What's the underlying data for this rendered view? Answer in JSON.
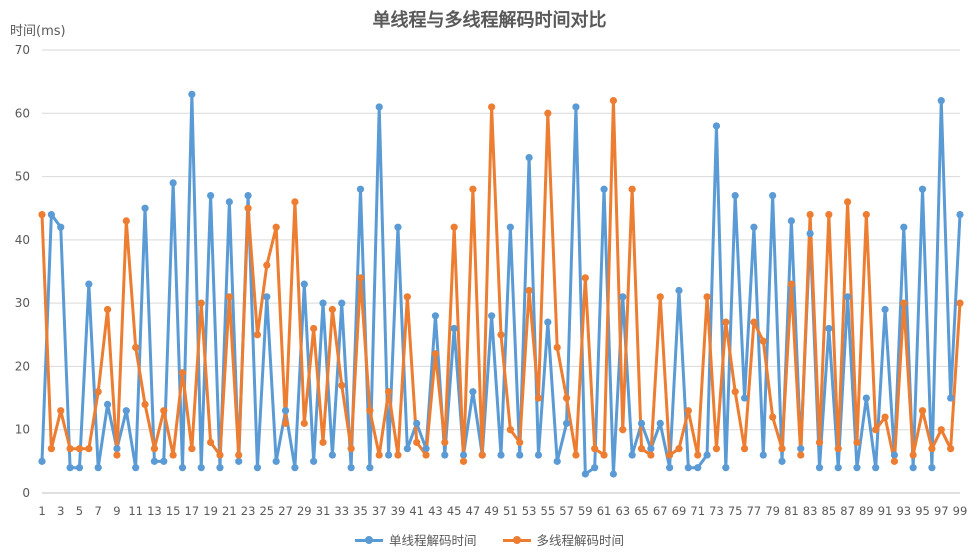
{
  "chart_data": {
    "type": "line",
    "title": "单线程与多线程解码时间对比",
    "xlabel": "",
    "ylabel": "时间(ms)",
    "ylim": [
      0,
      70
    ],
    "yticks": [
      0,
      10,
      20,
      30,
      40,
      50,
      60,
      70
    ],
    "x": [
      1,
      2,
      3,
      4,
      5,
      6,
      7,
      8,
      9,
      10,
      11,
      12,
      13,
      14,
      15,
      16,
      17,
      18,
      19,
      20,
      21,
      22,
      23,
      24,
      25,
      26,
      27,
      28,
      29,
      30,
      31,
      32,
      33,
      34,
      35,
      36,
      37,
      38,
      39,
      40,
      41,
      42,
      43,
      44,
      45,
      46,
      47,
      48,
      49,
      50,
      51,
      52,
      53,
      54,
      55,
      56,
      57,
      58,
      59,
      60,
      61,
      62,
      63,
      64,
      65,
      66,
      67,
      68,
      69,
      70,
      71,
      72,
      73,
      74,
      75,
      76,
      77,
      78,
      79,
      80,
      81,
      82,
      83,
      84,
      85,
      86,
      87,
      88,
      89,
      90,
      91,
      92,
      93,
      94,
      95,
      96,
      97,
      98,
      99
    ],
    "xticks": [
      1,
      3,
      5,
      7,
      9,
      11,
      13,
      15,
      17,
      19,
      21,
      23,
      25,
      27,
      29,
      31,
      33,
      35,
      37,
      39,
      41,
      43,
      45,
      47,
      49,
      51,
      53,
      55,
      57,
      59,
      61,
      63,
      65,
      67,
      69,
      71,
      73,
      75,
      77,
      79,
      81,
      83,
      85,
      87,
      89,
      91,
      93,
      95,
      97,
      99
    ],
    "grid": true,
    "legend_position": "bottom",
    "series": [
      {
        "name": "单线程解码时间",
        "color": "#5B9BD5",
        "values": [
          5,
          44,
          42,
          4,
          4,
          33,
          4,
          14,
          7,
          13,
          4,
          45,
          5,
          5,
          49,
          4,
          63,
          4,
          47,
          4,
          46,
          5,
          47,
          4,
          31,
          5,
          13,
          4,
          33,
          5,
          30,
          6,
          30,
          4,
          48,
          4,
          61,
          6,
          42,
          7,
          11,
          7,
          28,
          6,
          26,
          6,
          16,
          6,
          28,
          6,
          42,
          6,
          53,
          6,
          27,
          5,
          11,
          61,
          3,
          4,
          48,
          3,
          31,
          6,
          11,
          7,
          11,
          4,
          32,
          4,
          4,
          6,
          58,
          4,
          47,
          15,
          42,
          6,
          47,
          5,
          43,
          7,
          41,
          4,
          26,
          4,
          31,
          4,
          15,
          4,
          29,
          6,
          42,
          4,
          48,
          4,
          62,
          15,
          44
        ]
      },
      {
        "name": "多线程解码时间",
        "color": "#ED7D31",
        "values": [
          44,
          7,
          13,
          7,
          7,
          7,
          16,
          29,
          6,
          43,
          23,
          14,
          7,
          13,
          6,
          19,
          7,
          30,
          8,
          6,
          31,
          6,
          45,
          25,
          36,
          42,
          11,
          46,
          11,
          26,
          8,
          29,
          17,
          7,
          34,
          13,
          6,
          16,
          6,
          31,
          8,
          6,
          22,
          8,
          42,
          5,
          48,
          6,
          61,
          25,
          10,
          8,
          32,
          15,
          60,
          23,
          15,
          6,
          34,
          7,
          6,
          62,
          10,
          48,
          7,
          6,
          31,
          6,
          7,
          13,
          6,
          31,
          7,
          27,
          16,
          7,
          27,
          24,
          12,
          7,
          33,
          6,
          44,
          8,
          44,
          7,
          46,
          8,
          44,
          10,
          12,
          5,
          30,
          6,
          13,
          7,
          10,
          7,
          30
        ]
      }
    ]
  }
}
